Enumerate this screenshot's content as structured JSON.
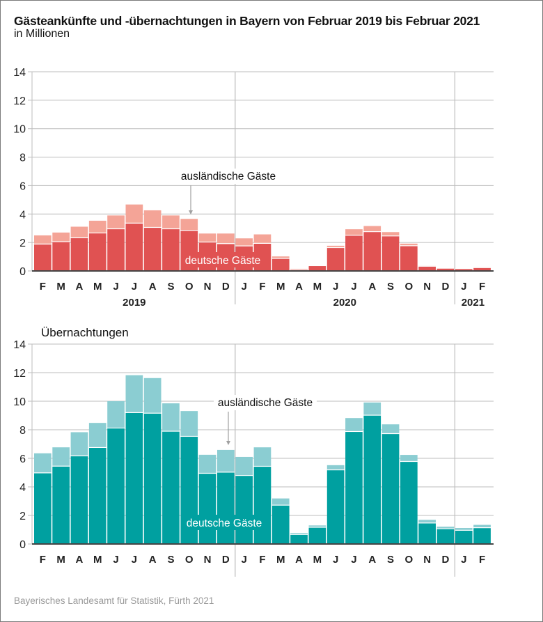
{
  "header": {
    "title": "Gästeankünfte und -übernachtungen in Bayern von Februar 2019 bis Februar 2021",
    "subtitle": "in Millionen"
  },
  "footer": {
    "source": "Bayerisches Landesamt für Statistik, Fürth 2021"
  },
  "colors": {
    "arrivals_domestic": "#e05252",
    "arrivals_foreign": "#f4a497",
    "nights_domestic": "#00a0a0",
    "nights_foreign": "#8bcdd2",
    "grid": "#bdbdbd",
    "baseline": "#444444"
  },
  "chart_data": [
    {
      "type": "bar",
      "stacked": true,
      "title": "Gästeankünfte",
      "panel_title": "",
      "xlabel": "",
      "ylabel": "",
      "ylim": [
        0,
        14
      ],
      "yticks": [
        "0",
        "2",
        "4",
        "6",
        "8",
        "10",
        "12",
        "14"
      ],
      "grid": true,
      "categories": [
        "F",
        "M",
        "A",
        "M",
        "J",
        "J",
        "A",
        "S",
        "O",
        "N",
        "D",
        "J",
        "F",
        "M",
        "A",
        "M",
        "J",
        "J",
        "A",
        "S",
        "O",
        "N",
        "D",
        "J",
        "F"
      ],
      "years": [
        {
          "label": "2019",
          "from": 0,
          "to": 10
        },
        {
          "label": "2020",
          "from": 11,
          "to": 22
        },
        {
          "label": "2021",
          "from": 23,
          "to": 24
        }
      ],
      "series": [
        {
          "name": "deutsche Gäste",
          "key": "domestic",
          "values": [
            1.89,
            2.06,
            2.33,
            2.67,
            2.96,
            3.36,
            3.06,
            2.96,
            2.85,
            2.03,
            1.92,
            1.76,
            1.94,
            0.88,
            0.1,
            0.37,
            1.64,
            2.51,
            2.76,
            2.46,
            1.77,
            0.33,
            0.19,
            0.16,
            0.23
          ]
        },
        {
          "name": "ausländische Gäste",
          "key": "foreign",
          "values": [
            0.61,
            0.64,
            0.78,
            0.86,
            0.94,
            1.31,
            1.2,
            0.94,
            0.81,
            0.6,
            0.71,
            0.53,
            0.63,
            0.14,
            0.05,
            0.02,
            0.13,
            0.42,
            0.4,
            0.27,
            0.15,
            0.03,
            0.02,
            0.02,
            0.03
          ]
        }
      ],
      "totals": [
        2.5,
        2.7,
        3.11,
        3.53,
        3.9,
        4.67,
        4.26,
        3.9,
        3.66,
        2.63,
        2.63,
        2.29,
        2.57,
        1.02,
        0.15,
        0.39,
        1.77,
        2.93,
        3.16,
        2.73,
        1.92,
        0.36,
        0.21,
        0.18,
        0.26
      ],
      "annotations": {
        "foreign_label": "ausländische Gäste",
        "foreign_label_points_to_index": 8,
        "domestic_label": "deutsche Gäste"
      }
    },
    {
      "type": "bar",
      "stacked": true,
      "title": "Übernachtungen",
      "panel_title": "Übernachtungen",
      "xlabel": "",
      "ylabel": "",
      "ylim": [
        0,
        14
      ],
      "yticks": [
        "0",
        "2",
        "4",
        "6",
        "8",
        "10",
        "12",
        "14"
      ],
      "grid": true,
      "categories": [
        "F",
        "M",
        "A",
        "M",
        "J",
        "J",
        "A",
        "S",
        "O",
        "N",
        "D",
        "J",
        "F",
        "M",
        "A",
        "M",
        "J",
        "J",
        "A",
        "S",
        "O",
        "N",
        "D",
        "J",
        "F"
      ],
      "years": [],
      "series": [
        {
          "name": "deutsche Gäste",
          "key": "domestic",
          "values": [
            4.98,
            5.45,
            6.17,
            6.76,
            8.12,
            9.2,
            9.16,
            7.9,
            7.54,
            4.95,
            5.03,
            4.8,
            5.44,
            2.72,
            0.67,
            1.17,
            5.19,
            7.88,
            9.02,
            7.73,
            5.78,
            1.47,
            1.07,
            0.96,
            1.14
          ]
        },
        {
          "name": "ausländische Gäste",
          "key": "foreign",
          "values": [
            1.37,
            1.32,
            1.66,
            1.72,
            1.88,
            2.62,
            2.46,
            1.95,
            1.77,
            1.3,
            1.56,
            1.3,
            1.33,
            0.47,
            0.1,
            0.13,
            0.33,
            0.94,
            0.89,
            0.65,
            0.46,
            0.22,
            0.14,
            0.16,
            0.2
          ]
        }
      ],
      "totals": [
        6.35,
        6.77,
        7.83,
        8.48,
        10.0,
        11.82,
        11.62,
        9.85,
        9.31,
        6.25,
        6.59,
        6.1,
        6.77,
        3.19,
        0.77,
        1.3,
        5.52,
        8.82,
        9.91,
        8.38,
        6.24,
        1.69,
        1.21,
        1.12,
        1.34
      ],
      "annotations": {
        "foreign_label": "ausländische Gäste",
        "foreign_label_points_to_index": 10,
        "domestic_label": "deutsche Gäste"
      }
    }
  ]
}
